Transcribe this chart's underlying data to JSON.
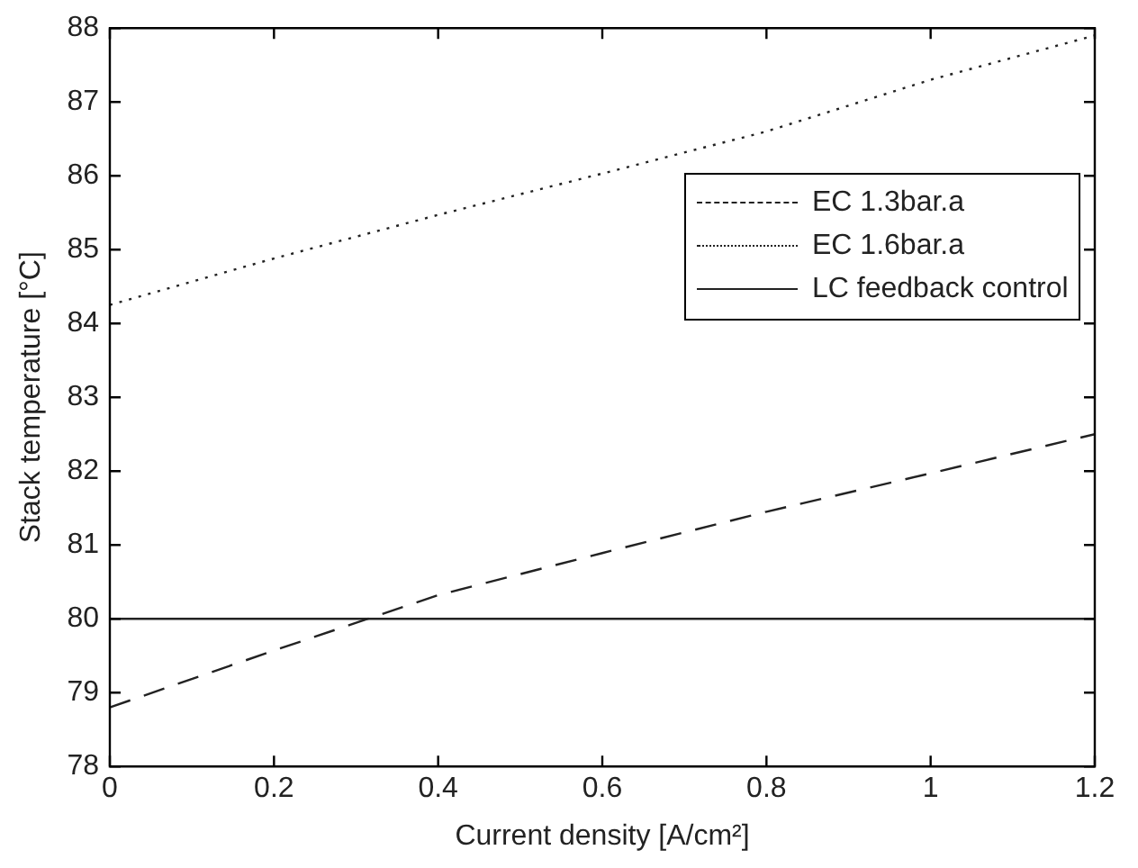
{
  "chart_data": {
    "type": "line",
    "xlabel": "Current density [A/cm²]",
    "ylabel": "Stack temperature [°C]",
    "x": [
      0,
      0.2,
      0.4,
      0.6,
      0.8,
      1.0,
      1.2
    ],
    "series": [
      {
        "name": "EC 1.3bar.a",
        "color": "#222222",
        "line_style": "dashed",
        "values": [
          78.8,
          79.57,
          80.32,
          80.89,
          81.45,
          81.97,
          82.5
        ]
      },
      {
        "name": "EC 1.6bar.a",
        "color": "#222222",
        "line_style": "dotted",
        "values": [
          84.25,
          84.88,
          85.47,
          86.03,
          86.6,
          87.3,
          87.9
        ]
      },
      {
        "name": "LC feedback control",
        "color": "#222222",
        "line_style": "solid",
        "values": [
          80,
          80,
          80,
          80,
          80,
          80,
          80
        ]
      }
    ],
    "xlim": [
      0,
      1.2
    ],
    "xticks": [
      0,
      0.2,
      0.4,
      0.6,
      0.8,
      1,
      1.2
    ],
    "ylim": [
      78,
      88
    ],
    "yticks": [
      78,
      79,
      80,
      81,
      82,
      83,
      84,
      85,
      86,
      87,
      88
    ],
    "grid": false,
    "legend": "top right",
    "marker": "none"
  }
}
